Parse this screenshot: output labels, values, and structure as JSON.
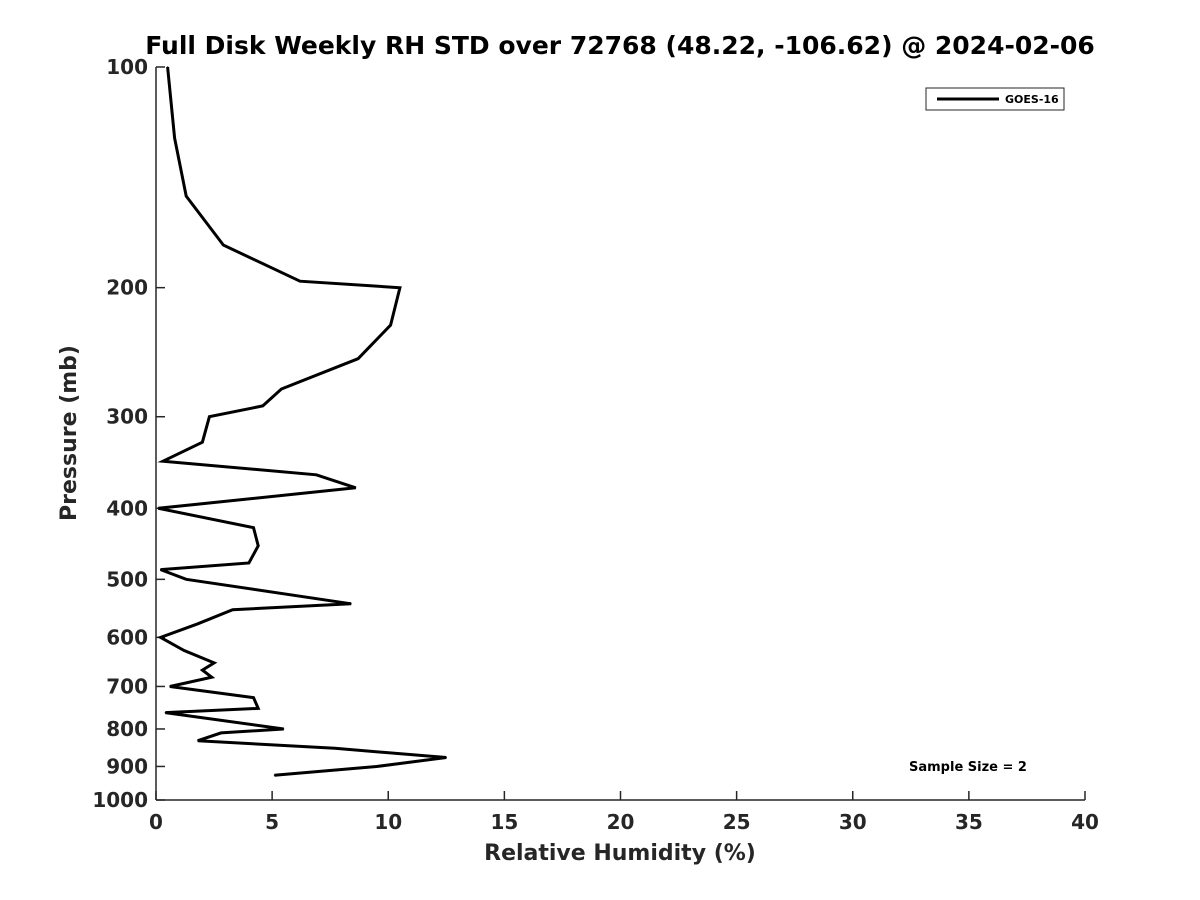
{
  "chart_data": {
    "type": "line",
    "title": "Full Disk Weekly RH STD over 72768 (48.22, -106.62) @ 2024-02-06",
    "xlabel": "Relative Humidity (%)",
    "ylabel": "Pressure (mb)",
    "xlim": [
      0,
      40
    ],
    "ylim": [
      100,
      1000
    ],
    "y_scale": "log",
    "y_reversed": true,
    "x_ticks": [
      "0",
      "5",
      "10",
      "15",
      "20",
      "25",
      "30",
      "35",
      "40"
    ],
    "y_ticks": [
      "100",
      "200",
      "300",
      "400",
      "500",
      "600",
      "700",
      "800",
      "900",
      "1000"
    ],
    "grid": false,
    "legend_position": "top-right",
    "annotation": "Sample Size = 2",
    "series": [
      {
        "name": "GOES-16",
        "color": "#000000",
        "points": [
          {
            "x": 0.5,
            "y": 100
          },
          {
            "x": 0.8,
            "y": 125
          },
          {
            "x": 1.3,
            "y": 150
          },
          {
            "x": 2.9,
            "y": 175
          },
          {
            "x": 6.2,
            "y": 196
          },
          {
            "x": 10.5,
            "y": 200
          },
          {
            "x": 10.1,
            "y": 225
          },
          {
            "x": 8.7,
            "y": 250
          },
          {
            "x": 5.4,
            "y": 275
          },
          {
            "x": 4.6,
            "y": 290
          },
          {
            "x": 2.3,
            "y": 300
          },
          {
            "x": 2.0,
            "y": 325
          },
          {
            "x": 0.3,
            "y": 345
          },
          {
            "x": 6.9,
            "y": 360
          },
          {
            "x": 8.6,
            "y": 375
          },
          {
            "x": 0.1,
            "y": 400
          },
          {
            "x": 4.2,
            "y": 425
          },
          {
            "x": 4.4,
            "y": 450
          },
          {
            "x": 4.0,
            "y": 475
          },
          {
            "x": 0.2,
            "y": 485
          },
          {
            "x": 1.3,
            "y": 500
          },
          {
            "x": 8.4,
            "y": 540
          },
          {
            "x": 3.3,
            "y": 550
          },
          {
            "x": 1.8,
            "y": 575
          },
          {
            "x": 0.2,
            "y": 600
          },
          {
            "x": 1.2,
            "y": 625
          },
          {
            "x": 2.5,
            "y": 650
          },
          {
            "x": 2.0,
            "y": 665
          },
          {
            "x": 2.4,
            "y": 680
          },
          {
            "x": 0.6,
            "y": 700
          },
          {
            "x": 4.2,
            "y": 725
          },
          {
            "x": 4.4,
            "y": 750
          },
          {
            "x": 0.4,
            "y": 760
          },
          {
            "x": 5.5,
            "y": 800
          },
          {
            "x": 2.8,
            "y": 810
          },
          {
            "x": 1.8,
            "y": 830
          },
          {
            "x": 7.7,
            "y": 850
          },
          {
            "x": 12.5,
            "y": 875
          },
          {
            "x": 9.5,
            "y": 900
          },
          {
            "x": 5.1,
            "y": 925
          }
        ]
      }
    ]
  }
}
